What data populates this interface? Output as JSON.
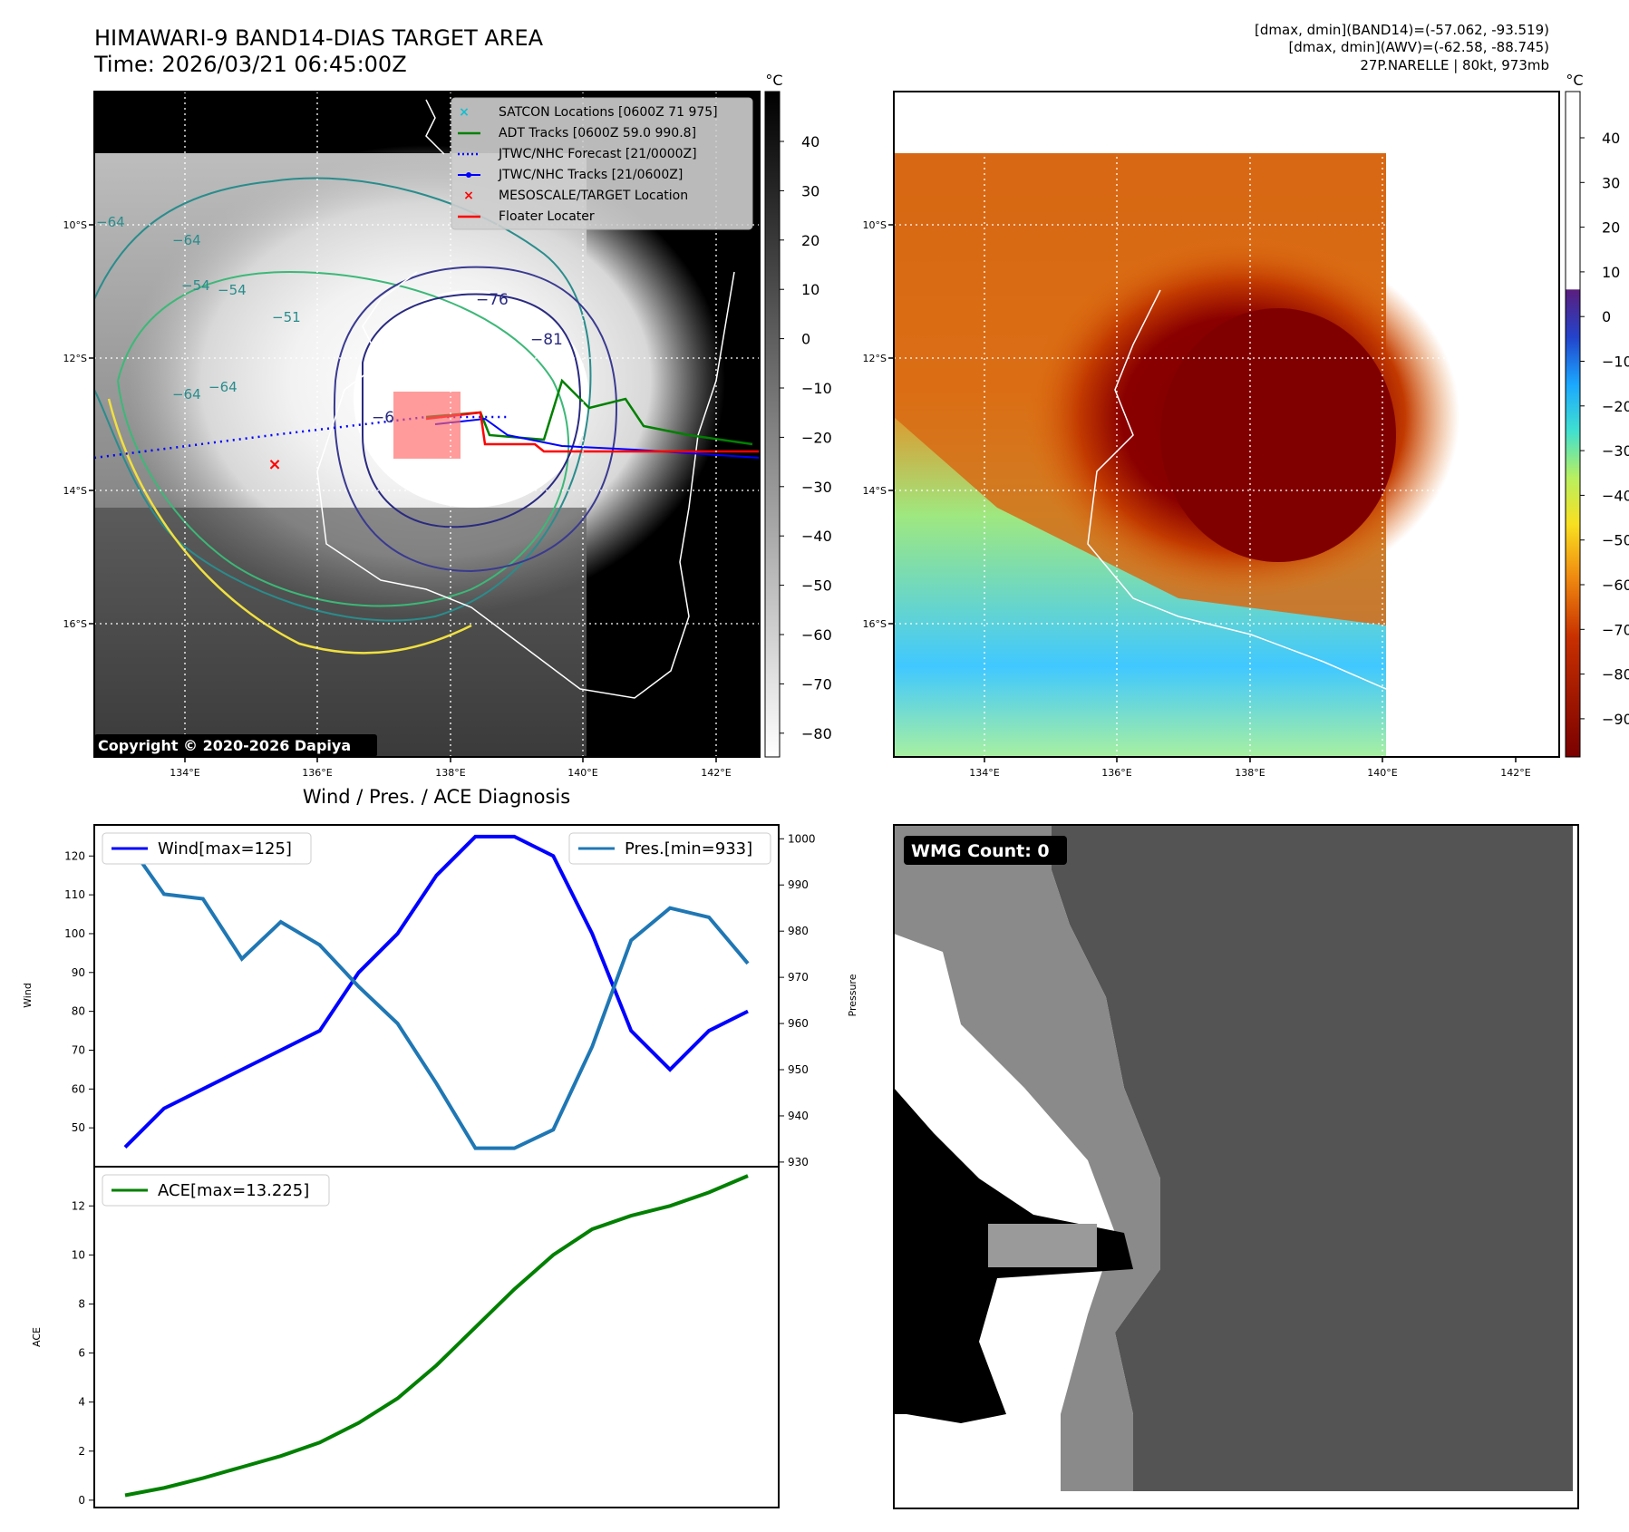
{
  "header": {
    "title": "HIMAWARI-9 BAND14-DIAS TARGET AREA",
    "time": "Time: 2026/03/21 06:45:00Z",
    "stat_band14": "[dmax, dmin](BAND14)=(-57.062, -93.519)",
    "stat_awv": "[dmax, dmin](AWV)=(-62.58, -88.745)",
    "storm_info": "27P.NARELLE | 80kt, 973mb"
  },
  "map_ir": {
    "lat_labels": [
      "10°S",
      "12°S",
      "14°S",
      "16°S"
    ],
    "lon_labels": [
      "134°E",
      "136°E",
      "138°E",
      "140°E",
      "142°E"
    ],
    "contour_labels": [
      "−76",
      "−81",
      "−64",
      "−64",
      "−64",
      "−54",
      "−54",
      "−51",
      "−64",
      "−6"
    ],
    "copyright": "Copyright © 2020-2026 Dapiya",
    "legend": [
      {
        "label": "SATCON Locations [0600Z 71 975]",
        "color": "#17becf",
        "marker": "x"
      },
      {
        "label": "ADT Tracks [0600Z 59.0 990.8]",
        "color": "#008000",
        "marker": "line"
      },
      {
        "label": "JTWC/NHC Forecast [21/0000Z]",
        "color": "#0000ff",
        "marker": "dotted"
      },
      {
        "label": "JTWC/NHC Tracks [21/0600Z]",
        "color": "#0000ff",
        "marker": "line-dot"
      },
      {
        "label": "MESOSCALE/TARGET Location",
        "color": "#ff0000",
        "marker": "x"
      },
      {
        "label": "Floater Locater",
        "color": "#ff0000",
        "marker": "line"
      }
    ],
    "colorbar": {
      "unit": "°C",
      "ticks": [
        "40",
        "30",
        "20",
        "10",
        "0",
        "−10",
        "−20",
        "−30",
        "−40",
        "−50",
        "−60",
        "−70",
        "−80"
      ]
    }
  },
  "map_awv": {
    "lat_labels": [
      "10°S",
      "12°S",
      "14°S",
      "16°S"
    ],
    "lon_labels": [
      "134°E",
      "136°E",
      "138°E",
      "140°E",
      "142°E"
    ],
    "colorbar": {
      "unit": "°C",
      "ticks": [
        "40",
        "30",
        "20",
        "10",
        "0",
        "−10",
        "−20",
        "−30",
        "−40",
        "−50",
        "−60",
        "−70",
        "−80",
        "−90"
      ]
    }
  },
  "wmg_panel": {
    "badge": "WMG Count: 0"
  },
  "chart_data": [
    {
      "type": "line",
      "title": "Wind / Pres. / ACE Diagnosis",
      "ylabel": "Wind",
      "ylabel_right": "Pressure",
      "ylim": [
        40,
        128
      ],
      "ylim_right": [
        929,
        1003
      ],
      "yticks": [
        50,
        60,
        70,
        80,
        90,
        100,
        110,
        120
      ],
      "yticks_right": [
        930,
        940,
        950,
        960,
        970,
        980,
        990,
        1000
      ],
      "x": [
        0,
        1,
        2,
        3,
        4,
        5,
        6,
        7,
        8,
        9,
        10,
        11,
        12,
        13,
        14,
        15,
        16
      ],
      "series": [
        {
          "name": "Wind[max=125]",
          "axis": "left",
          "color": "#0000ff",
          "values": [
            45,
            55,
            60,
            65,
            70,
            75,
            90,
            100,
            115,
            125,
            125,
            120,
            100,
            75,
            65,
            75,
            80
          ]
        },
        {
          "name": "Pres.[min=933]",
          "axis": "right",
          "color": "#1f77b4",
          "values": [
            1000,
            988,
            987,
            974,
            982,
            977,
            968,
            960,
            947,
            933,
            933,
            937,
            955,
            978,
            985,
            983,
            973
          ]
        }
      ],
      "legend_left": "Wind[max=125]",
      "legend_right": "Pres.[min=933]"
    },
    {
      "type": "line",
      "ylabel": "ACE",
      "ylim": [
        -0.3,
        13.6
      ],
      "yticks": [
        0,
        2,
        4,
        6,
        8,
        10,
        12
      ],
      "x": [
        0,
        1,
        2,
        3,
        4,
        5,
        6,
        7,
        8,
        9,
        10,
        11,
        12,
        13,
        14,
        15,
        16
      ],
      "series": [
        {
          "name": "ACE[max=13.225]",
          "color": "#008000",
          "values": [
            0.2,
            0.5,
            0.9,
            1.35,
            1.8,
            2.35,
            3.15,
            4.15,
            5.5,
            7.05,
            8.6,
            10.0,
            11.05,
            11.6,
            12.0,
            12.55,
            13.225
          ]
        }
      ]
    }
  ]
}
